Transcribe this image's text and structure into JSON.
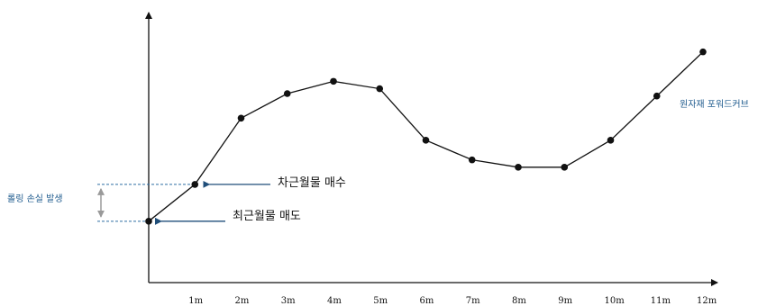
{
  "chart_data": {
    "type": "line",
    "title": "",
    "xlabel": "",
    "ylabel": "",
    "categories": [
      "",
      "1m",
      "2m",
      "3m",
      "4m",
      "5m",
      "6m",
      "7m",
      "8m",
      "9m",
      "10m",
      "11m",
      "12m"
    ],
    "series": [
      {
        "name": "원자재 포워드커브",
        "values": [
          25,
          40,
          67,
          77,
          82,
          79,
          58,
          50,
          47,
          47,
          58,
          76,
          94
        ]
      }
    ],
    "ylim": [
      0,
      110
    ],
    "grid": false,
    "annotations": {
      "buy": "차근월물 매수",
      "sell": "최근월물 매도",
      "rolling_loss": "롤링 손실 발생"
    },
    "colors": {
      "line": "#111111",
      "arrow": "#1f4e79",
      "dashed": "#2e6da4",
      "bracket": "#9a9a9a",
      "label": "#1f5b8e"
    }
  }
}
